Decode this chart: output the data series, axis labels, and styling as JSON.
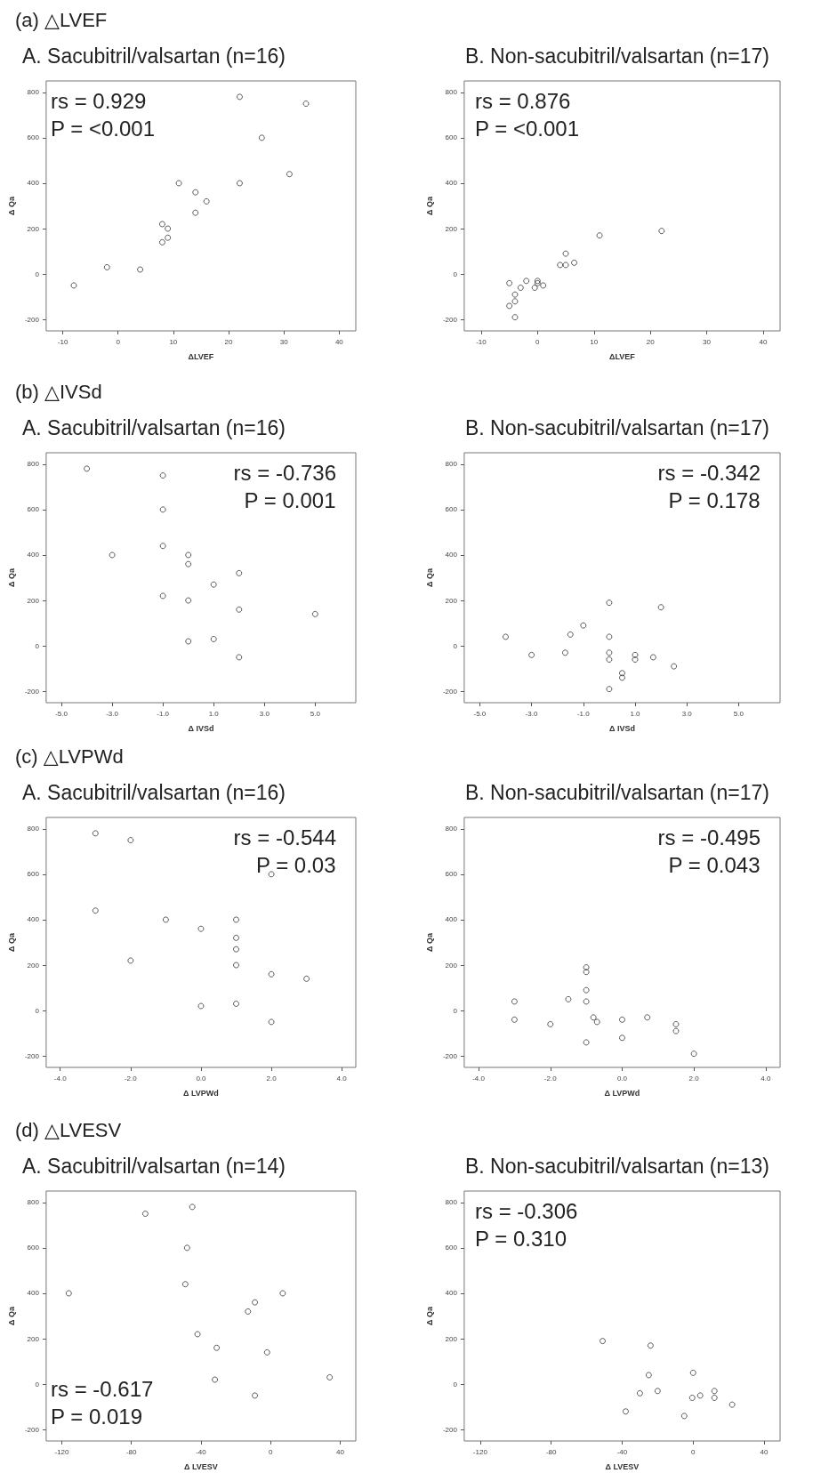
{
  "chart_data": [
    {
      "type": "scatter",
      "title": "(a) △LVEF",
      "subtitle": "A. Sacubitril/valsartan (n=16)",
      "xlabel": "ΔLVEF",
      "ylabel": "Δ Qa",
      "marker": "circle",
      "color": "#333333",
      "x": [
        22,
        34,
        26,
        31,
        11,
        22,
        14,
        16,
        14,
        8,
        9,
        9,
        8,
        -2,
        4,
        -8
      ],
      "values": [
        780,
        750,
        600,
        440,
        400,
        400,
        360,
        320,
        270,
        220,
        200,
        160,
        140,
        30,
        20,
        -50
      ],
      "xlim": [
        -13,
        43
      ],
      "ylim": [
        -250,
        850
      ],
      "xticks": [
        -10,
        0,
        10,
        20,
        30,
        40
      ],
      "yticks": [
        -200,
        0,
        200,
        400,
        600,
        800
      ],
      "annotations": [
        "rs = 0.929",
        "P = <0.001"
      ]
    },
    {
      "type": "scatter",
      "subtitle": "B. Non-sacubitril/valsartan (n=17)",
      "xlabel": "ΔLVEF",
      "ylabel": "Δ Qa",
      "marker": "circle",
      "color": "#333333",
      "x": [
        22,
        11,
        5,
        6.5,
        4,
        5,
        -2,
        0,
        0,
        1,
        -5,
        -3,
        -0.5,
        -4,
        -5,
        -4,
        -4
      ],
      "values": [
        190,
        170,
        90,
        50,
        40,
        40,
        -30,
        -30,
        -40,
        -50,
        -40,
        -60,
        -60,
        -90,
        -140,
        -120,
        -190
      ],
      "xlim": [
        -13,
        43
      ],
      "ylim": [
        -250,
        850
      ],
      "xticks": [
        -10,
        0,
        10,
        20,
        30,
        40
      ],
      "yticks": [
        -200,
        0,
        200,
        400,
        600,
        800
      ],
      "annotations": [
        "rs = 0.876",
        "P = <0.001"
      ]
    },
    {
      "type": "scatter",
      "title": "(b) △IVSd",
      "subtitle": "A. Sacubitril/valsartan (n=16)",
      "xlabel": "Δ IVSd",
      "ylabel": "Δ Qa",
      "marker": "circle",
      "color": "#333333",
      "x": [
        -4,
        -1,
        -1,
        -1,
        -3,
        0,
        0,
        1,
        2,
        -1,
        0,
        2,
        5,
        0,
        1,
        2
      ],
      "values": [
        780,
        750,
        600,
        440,
        400,
        400,
        360,
        270,
        320,
        220,
        200,
        160,
        140,
        20,
        30,
        -50
      ],
      "xlim": [
        -5.6,
        6.6
      ],
      "ylim": [
        -250,
        850
      ],
      "xticks": [
        {
          "value": -5,
          "label": "-5.0"
        },
        {
          "value": -3,
          "label": "-3.0"
        },
        {
          "value": -1,
          "label": "-1.0"
        },
        {
          "value": 1,
          "label": "1.0"
        },
        {
          "value": 3,
          "label": "3.0"
        },
        {
          "value": 5,
          "label": "5.0"
        }
      ],
      "yticks": [
        -200,
        0,
        200,
        400,
        600,
        800
      ],
      "annotations": [
        "rs = -0.736",
        "P = 0.001"
      ]
    },
    {
      "type": "scatter",
      "subtitle": "B. Non-sacubitril/valsartan (n=17)",
      "xlabel": "Δ IVSd",
      "ylabel": "Δ Qa",
      "marker": "circle",
      "color": "#333333",
      "x": [
        -4,
        -3,
        -1.7,
        -1.5,
        -1,
        0,
        0,
        0,
        0,
        0.5,
        0.5,
        0,
        1,
        1,
        1.7,
        2,
        2.5
      ],
      "values": [
        40,
        -40,
        -30,
        50,
        90,
        190,
        40,
        -30,
        -60,
        -120,
        -140,
        -190,
        -40,
        -60,
        -50,
        170,
        -90
      ],
      "xlim": [
        -5.6,
        6.6
      ],
      "ylim": [
        -250,
        850
      ],
      "xticks": [
        {
          "value": -5,
          "label": "-5.0"
        },
        {
          "value": -3,
          "label": "-3.0"
        },
        {
          "value": -1,
          "label": "-1.0"
        },
        {
          "value": 1,
          "label": "1.0"
        },
        {
          "value": 3,
          "label": "3.0"
        },
        {
          "value": 5,
          "label": "5.0"
        }
      ],
      "yticks": [
        -200,
        0,
        200,
        400,
        600,
        800
      ],
      "annotations": [
        "rs = -0.342",
        "P = 0.178"
      ]
    },
    {
      "type": "scatter",
      "title": "(c) △LVPWd",
      "subtitle": "A. Sacubitril/valsartan (n=16)",
      "xlabel": "Δ LVPWd",
      "ylabel": "Δ Qa",
      "marker": "circle",
      "color": "#333333",
      "x": [
        -3,
        -2,
        -3,
        -2,
        -1,
        0,
        1,
        1,
        1,
        1,
        2,
        2,
        3,
        0,
        1,
        2
      ],
      "values": [
        780,
        750,
        440,
        220,
        400,
        360,
        400,
        320,
        270,
        200,
        600,
        160,
        140,
        20,
        30,
        -50
      ],
      "xlim": [
        -4.4,
        4.4
      ],
      "ylim": [
        -250,
        850
      ],
      "xticks": [
        {
          "value": -4,
          "label": "-4.0"
        },
        {
          "value": -2,
          "label": "-2.0"
        },
        {
          "value": 0,
          "label": "0.0"
        },
        {
          "value": 2,
          "label": "2.0"
        },
        {
          "value": 4,
          "label": "4.0"
        }
      ],
      "yticks": [
        -200,
        0,
        200,
        400,
        600,
        800
      ],
      "annotations": [
        "rs = -0.544",
        "P = 0.03"
      ]
    },
    {
      "type": "scatter",
      "subtitle": "B. Non-sacubitril/valsartan (n=17)",
      "xlabel": "Δ LVPWd",
      "ylabel": "Δ Qa",
      "marker": "circle",
      "color": "#333333",
      "x": [
        -3,
        -3,
        -2,
        -1.5,
        -1,
        -1,
        -1,
        -1,
        -1,
        -0.8,
        -0.7,
        0,
        0,
        0.7,
        1.5,
        1.5,
        2
      ],
      "values": [
        40,
        -40,
        -60,
        50,
        190,
        170,
        90,
        40,
        -140,
        -30,
        -50,
        -40,
        -120,
        -30,
        -60,
        -90,
        -190
      ],
      "xlim": [
        -4.4,
        4.4
      ],
      "ylim": [
        -250,
        850
      ],
      "xticks": [
        {
          "value": -4,
          "label": "-4.0"
        },
        {
          "value": -2,
          "label": "-2.0"
        },
        {
          "value": 0,
          "label": "0.0"
        },
        {
          "value": 2,
          "label": "2.0"
        },
        {
          "value": 4,
          "label": "4.0"
        }
      ],
      "yticks": [
        -200,
        0,
        200,
        400,
        600,
        800
      ],
      "annotations": [
        "rs = -0.495",
        "P = 0.043"
      ]
    },
    {
      "type": "scatter",
      "title": "(d) △LVESV",
      "subtitle": "A. Sacubitril/valsartan (n=14)",
      "xlabel": "Δ LVESV",
      "ylabel": "Δ Qa",
      "marker": "circle",
      "color": "#333333",
      "x": [
        -45,
        -72,
        -48,
        -49,
        -116,
        7,
        -9,
        -13,
        -42,
        -31,
        -2,
        -32,
        34,
        -9
      ],
      "values": [
        780,
        750,
        600,
        440,
        400,
        400,
        360,
        320,
        220,
        160,
        140,
        20,
        30,
        -50
      ],
      "xlim": [
        -129,
        49
      ],
      "ylim": [
        -250,
        850
      ],
      "xticks": [
        -120,
        -80,
        -40,
        0,
        40
      ],
      "yticks": [
        -200,
        0,
        200,
        400,
        600,
        800
      ],
      "annotations": [
        "rs = -0.617",
        "P = 0.019"
      ]
    },
    {
      "type": "scatter",
      "subtitle": "B. Non-sacubitril/valsartan (n=13)",
      "xlabel": "Δ LVESV",
      "ylabel": "Δ Qa",
      "marker": "circle",
      "color": "#333333",
      "x": [
        -51,
        -24,
        -25,
        -30,
        -20,
        -38,
        -5,
        0,
        -0.5,
        4,
        12,
        12,
        22
      ],
      "values": [
        190,
        170,
        40,
        -40,
        -30,
        -120,
        -140,
        50,
        -60,
        -50,
        -30,
        -60,
        -90
      ],
      "xlim": [
        -129,
        49
      ],
      "ylim": [
        -250,
        850
      ],
      "xticks": [
        -120,
        -80,
        -40,
        0,
        40
      ],
      "yticks": [
        -200,
        0,
        200,
        400,
        600,
        800
      ],
      "annotations": [
        "rs = -0.306",
        "P = 0.310"
      ]
    }
  ]
}
